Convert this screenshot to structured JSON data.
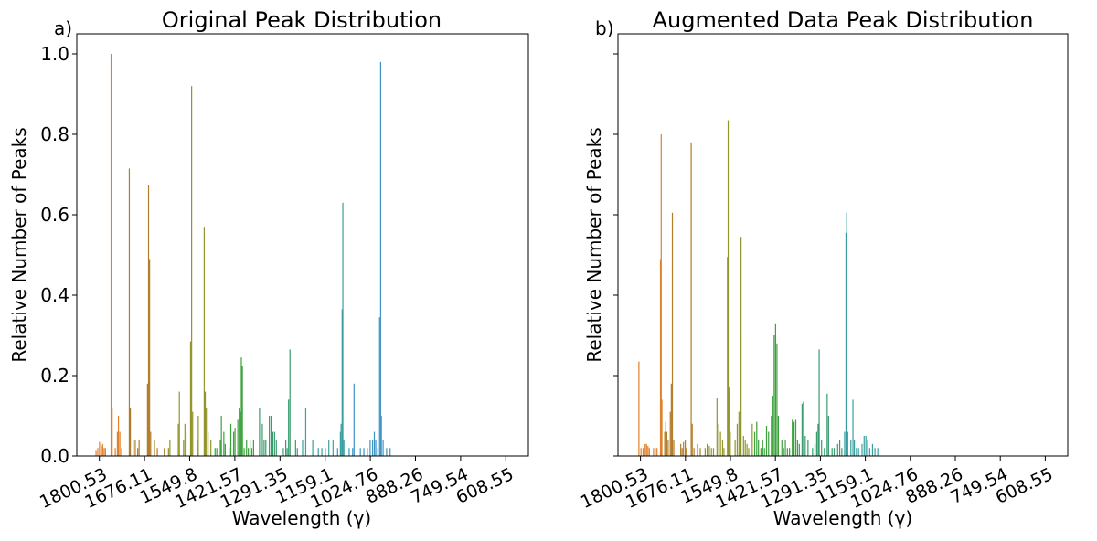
{
  "chart_data": [
    {
      "type": "bar",
      "panel_label": "a)",
      "title": "Original Peak Distribution",
      "xlabel": "Wavelength (γ)",
      "ylabel": "Relative Number of Peaks",
      "x_axis_inverted": true,
      "xlim": [
        1850,
        560
      ],
      "ylim": [
        0.0,
        1.05
      ],
      "x_tick_labels": [
        "1800.53",
        "1676.11",
        "1549.8",
        "1421.57",
        "1291.35",
        "1159.1",
        "1024.76",
        "888.26",
        "749.54",
        "608.55"
      ],
      "y_ticks": [
        0.0,
        0.2,
        0.4,
        0.6,
        0.8,
        1.0
      ],
      "y_tick_labels": [
        "0.0",
        "0.2",
        "0.4",
        "0.6",
        "0.8",
        "1.0"
      ],
      "grid": false,
      "legend": "none",
      "bars": [
        [
          1795,
          0.015
        ],
        [
          1790,
          0.02
        ],
        [
          1785,
          0.035
        ],
        [
          1780,
          0.025
        ],
        [
          1776,
          0.03
        ],
        [
          1772,
          0.02
        ],
        [
          1768,
          0.02
        ],
        [
          1752,
          1.0
        ],
        [
          1749,
          0.12
        ],
        [
          1740,
          0.02
        ],
        [
          1734,
          0.06
        ],
        [
          1731,
          0.1
        ],
        [
          1727,
          0.06
        ],
        [
          1722,
          0.02
        ],
        [
          1700,
          0.715
        ],
        [
          1697,
          0.12
        ],
        [
          1689,
          0.04
        ],
        [
          1683,
          0.04
        ],
        [
          1676,
          0.02
        ],
        [
          1672,
          0.04
        ],
        [
          1648,
          0.18
        ],
        [
          1645,
          0.675
        ],
        [
          1642,
          0.49
        ],
        [
          1639,
          0.06
        ],
        [
          1628,
          0.04
        ],
        [
          1620,
          0.02
        ],
        [
          1600,
          0.02
        ],
        [
          1588,
          0.02
        ],
        [
          1584,
          0.04
        ],
        [
          1560,
          0.08
        ],
        [
          1557,
          0.16
        ],
        [
          1545,
          0.04
        ],
        [
          1541,
          0.08
        ],
        [
          1538,
          0.06
        ],
        [
          1525,
          0.285
        ],
        [
          1522,
          0.92
        ],
        [
          1519,
          0.11
        ],
        [
          1506,
          0.04
        ],
        [
          1503,
          0.1
        ],
        [
          1486,
          0.57
        ],
        [
          1483,
          0.16
        ],
        [
          1480,
          0.12
        ],
        [
          1475,
          0.06
        ],
        [
          1467,
          0.04
        ],
        [
          1455,
          0.02
        ],
        [
          1450,
          0.02
        ],
        [
          1440,
          0.04
        ],
        [
          1437,
          0.1
        ],
        [
          1430,
          0.06
        ],
        [
          1426,
          0.03
        ],
        [
          1415,
          0.02
        ],
        [
          1410,
          0.08
        ],
        [
          1402,
          0.06
        ],
        [
          1398,
          0.07
        ],
        [
          1390,
          0.09
        ],
        [
          1386,
          0.12
        ],
        [
          1383,
          0.11
        ],
        [
          1380,
          0.245
        ],
        [
          1377,
          0.225
        ],
        [
          1372,
          0.02
        ],
        [
          1365,
          0.04
        ],
        [
          1360,
          0.02
        ],
        [
          1355,
          0.04
        ],
        [
          1350,
          0.02
        ],
        [
          1345,
          0.04
        ],
        [
          1328,
          0.12
        ],
        [
          1320,
          0.08
        ],
        [
          1315,
          0.04
        ],
        [
          1310,
          0.04
        ],
        [
          1300,
          0.1
        ],
        [
          1295,
          0.1
        ],
        [
          1290,
          0.06
        ],
        [
          1285,
          0.06
        ],
        [
          1280,
          0.04
        ],
        [
          1260,
          0.02
        ],
        [
          1253,
          0.04
        ],
        [
          1249,
          0.02
        ],
        [
          1245,
          0.14
        ],
        [
          1241,
          0.265
        ],
        [
          1225,
          0.04
        ],
        [
          1220,
          0.02
        ],
        [
          1205,
          0.04
        ],
        [
          1196,
          0.12
        ],
        [
          1176,
          0.04
        ],
        [
          1160,
          0.02
        ],
        [
          1150,
          0.02
        ],
        [
          1140,
          0.02
        ],
        [
          1130,
          0.04
        ],
        [
          1118,
          0.04
        ],
        [
          1105,
          0.02
        ],
        [
          1097,
          0.06
        ],
        [
          1095,
          0.08
        ],
        [
          1092,
          0.365
        ],
        [
          1090,
          0.63
        ],
        [
          1087,
          0.04
        ],
        [
          1072,
          0.02
        ],
        [
          1062,
          0.02
        ],
        [
          1058,
          0.18
        ],
        [
          1040,
          0.02
        ],
        [
          1030,
          0.02
        ],
        [
          1020,
          0.02
        ],
        [
          1012,
          0.04
        ],
        [
          1005,
          0.04
        ],
        [
          1000,
          0.06
        ],
        [
          996,
          0.04
        ],
        [
          990,
          0.02
        ],
        [
          985,
          0.345
        ],
        [
          982,
          0.98
        ],
        [
          980,
          0.1
        ],
        [
          975,
          0.04
        ],
        [
          965,
          0.02
        ],
        [
          955,
          0.02
        ]
      ]
    },
    {
      "type": "bar",
      "panel_label": "b)",
      "title": "Augmented Data Peak Distribution",
      "xlabel": "Wavelength (γ)",
      "ylabel": "Relative Number of Peaks",
      "x_axis_inverted": true,
      "xlim": [
        1850,
        560
      ],
      "ylim": [
        0.0,
        1.05
      ],
      "x_tick_labels": [
        "1800.53",
        "1676.11",
        "1549.8",
        "1421.57",
        "1291.35",
        "1159.1",
        "1024.76",
        "888.26",
        "749.54",
        "608.55"
      ],
      "y_ticks": [
        0.0,
        0.2,
        0.4,
        0.6,
        0.8,
        1.0
      ],
      "grid": false,
      "legend": "none",
      "bars": [
        [
          1790,
          0.235
        ],
        [
          1784,
          0.02
        ],
        [
          1778,
          0.02
        ],
        [
          1772,
          0.03
        ],
        [
          1768,
          0.03
        ],
        [
          1764,
          0.025
        ],
        [
          1760,
          0.02
        ],
        [
          1748,
          0.02
        ],
        [
          1743,
          0.02
        ],
        [
          1738,
          0.02
        ],
        [
          1728,
          0.49
        ],
        [
          1726,
          0.8
        ],
        [
          1724,
          0.14
        ],
        [
          1716,
          0.06
        ],
        [
          1713,
          0.085
        ],
        [
          1710,
          0.06
        ],
        [
          1706,
          0.04
        ],
        [
          1700,
          0.11
        ],
        [
          1697,
          0.18
        ],
        [
          1694,
          0.605
        ],
        [
          1690,
          0.04
        ],
        [
          1670,
          0.03
        ],
        [
          1666,
          0.02
        ],
        [
          1662,
          0.035
        ],
        [
          1657,
          0.04
        ],
        [
          1654,
          0.02
        ],
        [
          1640,
          0.78
        ],
        [
          1637,
          0.08
        ],
        [
          1632,
          0.02
        ],
        [
          1622,
          0.03
        ],
        [
          1614,
          0.02
        ],
        [
          1600,
          0.02
        ],
        [
          1594,
          0.03
        ],
        [
          1588,
          0.025
        ],
        [
          1582,
          0.02
        ],
        [
          1576,
          0.02
        ],
        [
          1566,
          0.145
        ],
        [
          1561,
          0.08
        ],
        [
          1556,
          0.06
        ],
        [
          1550,
          0.04
        ],
        [
          1546,
          0.02
        ],
        [
          1536,
          0.495
        ],
        [
          1534,
          0.835
        ],
        [
          1531,
          0.17
        ],
        [
          1528,
          0.06
        ],
        [
          1514,
          0.04
        ],
        [
          1508,
          0.08
        ],
        [
          1503,
          0.11
        ],
        [
          1499,
          0.3
        ],
        [
          1497,
          0.545
        ],
        [
          1490,
          0.05
        ],
        [
          1485,
          0.04
        ],
        [
          1480,
          0.03
        ],
        [
          1475,
          0.02
        ],
        [
          1465,
          0.08
        ],
        [
          1458,
          0.06
        ],
        [
          1452,
          0.085
        ],
        [
          1447,
          0.04
        ],
        [
          1440,
          0.02
        ],
        [
          1435,
          0.04
        ],
        [
          1430,
          0.02
        ],
        [
          1424,
          0.075
        ],
        [
          1418,
          0.06
        ],
        [
          1410,
          0.1
        ],
        [
          1406,
          0.15
        ],
        [
          1402,
          0.3
        ],
        [
          1398,
          0.33
        ],
        [
          1394,
          0.28
        ],
        [
          1390,
          0.1
        ],
        [
          1380,
          0.04
        ],
        [
          1375,
          0.02
        ],
        [
          1370,
          0.04
        ],
        [
          1364,
          0.02
        ],
        [
          1358,
          0.02
        ],
        [
          1350,
          0.09
        ],
        [
          1345,
          0.085
        ],
        [
          1340,
          0.09
        ],
        [
          1335,
          0.04
        ],
        [
          1330,
          0.03
        ],
        [
          1322,
          0.13
        ],
        [
          1318,
          0.135
        ],
        [
          1313,
          0.05
        ],
        [
          1305,
          0.04
        ],
        [
          1292,
          0.02
        ],
        [
          1285,
          0.03
        ],
        [
          1280,
          0.06
        ],
        [
          1276,
          0.08
        ],
        [
          1273,
          0.265
        ],
        [
          1266,
          0.04
        ],
        [
          1258,
          0.02
        ],
        [
          1250,
          0.155
        ],
        [
          1246,
          0.1
        ],
        [
          1236,
          0.02
        ],
        [
          1230,
          0.02
        ],
        [
          1220,
          0.03
        ],
        [
          1214,
          0.04
        ],
        [
          1208,
          0.02
        ],
        [
          1200,
          0.06
        ],
        [
          1196,
          0.555
        ],
        [
          1194,
          0.605
        ],
        [
          1191,
          0.06
        ],
        [
          1182,
          0.04
        ],
        [
          1176,
          0.14
        ],
        [
          1172,
          0.04
        ],
        [
          1166,
          0.02
        ],
        [
          1160,
          0.02
        ],
        [
          1150,
          0.03
        ],
        [
          1144,
          0.05
        ],
        [
          1139,
          0.05
        ],
        [
          1134,
          0.04
        ],
        [
          1128,
          0.02
        ],
        [
          1120,
          0.03
        ],
        [
          1113,
          0.02
        ],
        [
          1105,
          0.02
        ]
      ]
    }
  ]
}
